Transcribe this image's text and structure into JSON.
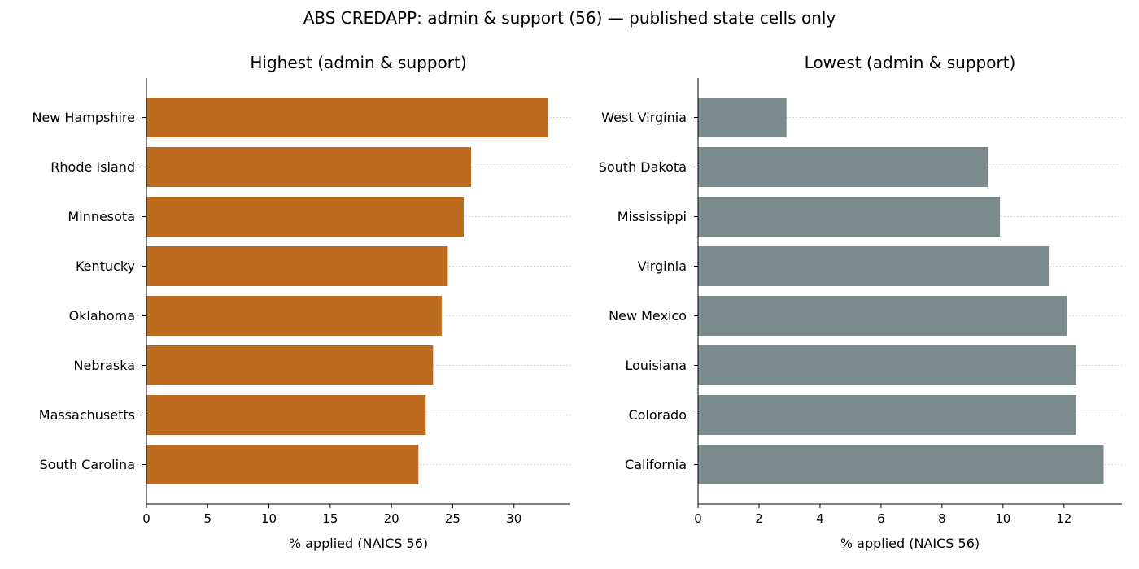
{
  "figure": {
    "suptitle": "ABS CREDAPP: admin & support (56) — published state cells only"
  },
  "chart_data": [
    {
      "type": "bar",
      "orientation": "horizontal",
      "title": "Highest (admin & support)",
      "xlabel": "% applied (NAICS 56)",
      "ylabel": "",
      "color": "#bd6b1f",
      "categories": [
        "New Hampshire",
        "Rhode Island",
        "Minnesota",
        "Kentucky",
        "Oklahoma",
        "Nebraska",
        "Massachusetts",
        "South Carolina"
      ],
      "values": [
        32.8,
        26.5,
        25.9,
        24.6,
        24.1,
        23.4,
        22.8,
        22.2
      ],
      "xlim": [
        0,
        34.6
      ],
      "xticks": [
        0,
        5,
        10,
        15,
        20,
        25,
        30
      ],
      "grid": "x dotted"
    },
    {
      "type": "bar",
      "orientation": "horizontal",
      "title": "Lowest (admin & support)",
      "xlabel": "% applied (NAICS 56)",
      "ylabel": "",
      "color": "#7b8a8b",
      "categories": [
        "West Virginia",
        "South Dakota",
        "Mississippi",
        "Virginia",
        "New Mexico",
        "Louisiana",
        "Colorado",
        "California"
      ],
      "values": [
        2.9,
        9.5,
        9.9,
        11.5,
        12.1,
        12.4,
        12.4,
        13.3
      ],
      "xlim": [
        0,
        13.9
      ],
      "xticks": [
        0,
        2,
        4,
        6,
        8,
        10,
        12
      ],
      "grid": "x dotted"
    }
  ]
}
